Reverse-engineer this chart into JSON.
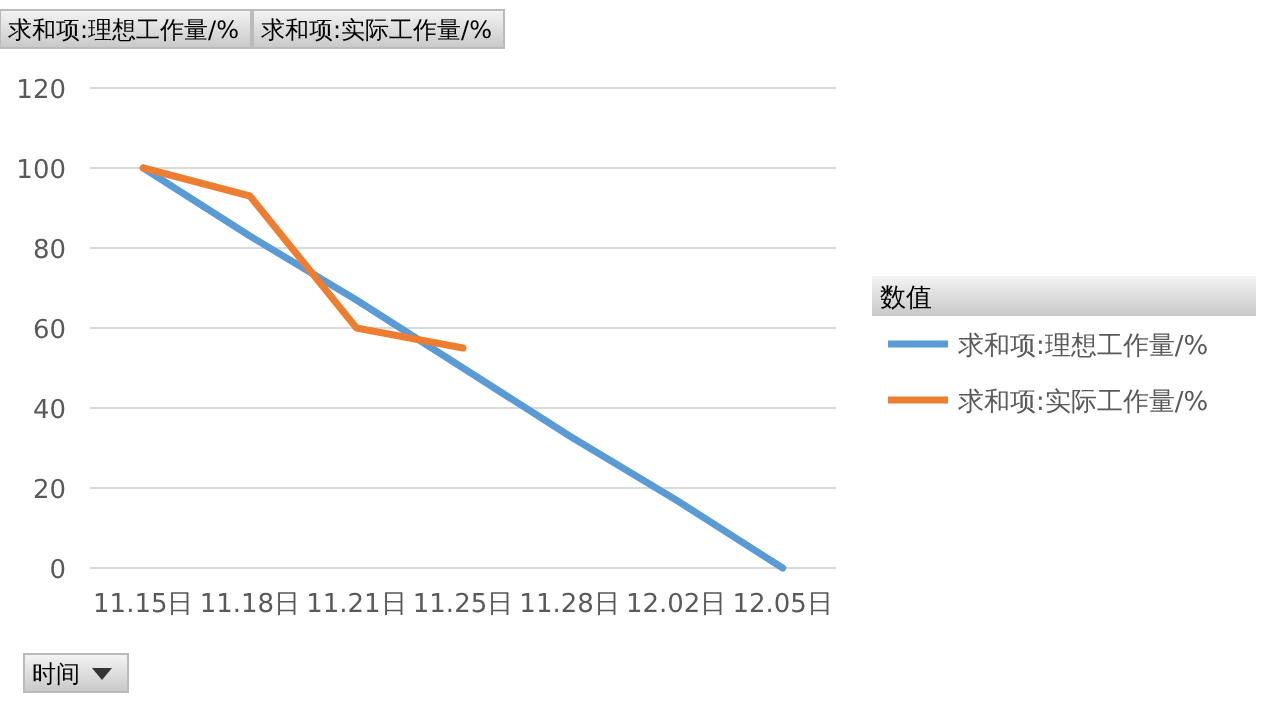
{
  "chart_data": {
    "type": "line",
    "annotations": [
      "求和项:理想工作量/%",
      "求和项:实际工作量/%"
    ],
    "xlabel": "时间",
    "legend_title": "数值",
    "legend": "right",
    "grid": "y",
    "categories": [
      "11.15日",
      "11.18日",
      "11.21日",
      "11.25日",
      "11.28日",
      "12.02日",
      "12.05日"
    ],
    "ylim": [
      0,
      120
    ],
    "yticks": [
      0,
      20,
      40,
      60,
      80,
      100,
      120
    ],
    "series": [
      {
        "name": "求和项:理想工作量/%",
        "color": "#5b9bd5",
        "values": [
          100,
          83,
          67,
          50,
          33,
          17,
          0
        ]
      },
      {
        "name": "求和项:实际工作量/%",
        "color": "#ed7d31",
        "values": [
          100,
          93,
          60,
          55,
          null,
          null,
          null
        ]
      }
    ]
  }
}
